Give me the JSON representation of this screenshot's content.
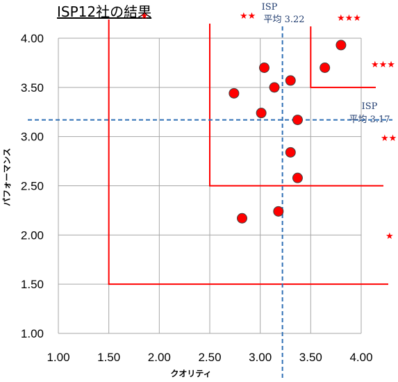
{
  "chart_data": {
    "type": "scatter",
    "title": "ISP12社の結果",
    "xlabel": "クオリティ",
    "ylabel": "パフォーマンス",
    "xlim": [
      1.0,
      4.0
    ],
    "ylim": [
      1.0,
      4.0
    ],
    "x_ticks": [
      "1.00",
      "1.50",
      "2.00",
      "2.50",
      "3.00",
      "3.50",
      "4.00"
    ],
    "y_ticks": [
      "1.00",
      "1.50",
      "2.00",
      "2.50",
      "3.00",
      "3.50",
      "4.00"
    ],
    "grid": true,
    "points": [
      {
        "x": 3.8,
        "y": 3.93
      },
      {
        "x": 3.64,
        "y": 3.7
      },
      {
        "x": 3.04,
        "y": 3.7
      },
      {
        "x": 3.3,
        "y": 3.57
      },
      {
        "x": 3.14,
        "y": 3.5
      },
      {
        "x": 2.74,
        "y": 3.44
      },
      {
        "x": 3.01,
        "y": 3.24
      },
      {
        "x": 3.37,
        "y": 3.17
      },
      {
        "x": 3.3,
        "y": 2.84
      },
      {
        "x": 3.37,
        "y": 2.58
      },
      {
        "x": 3.18,
        "y": 2.24
      },
      {
        "x": 2.82,
        "y": 2.17
      }
    ],
    "averages": {
      "x": {
        "value": 3.22,
        "label_line1": "ISP",
        "label_line2": "平均 3.22"
      },
      "y": {
        "value": 3.17,
        "label_line1": "ISP",
        "label_line2": "平均 3.17"
      }
    },
    "tiers": [
      {
        "x": 1.5,
        "y": 1.5,
        "stars": "★"
      },
      {
        "x": 2.5,
        "y": 2.5,
        "stars": "★★"
      },
      {
        "x": 3.5,
        "y": 3.5,
        "stars": "★★★"
      }
    ],
    "top_stars": [
      "★★",
      "★★★"
    ],
    "stray_star": "★",
    "colors": {
      "point": "#ff0000",
      "tier_line": "#ff0000",
      "avg_line": "#2e6fb5",
      "grid": "#a6a6a6"
    }
  }
}
